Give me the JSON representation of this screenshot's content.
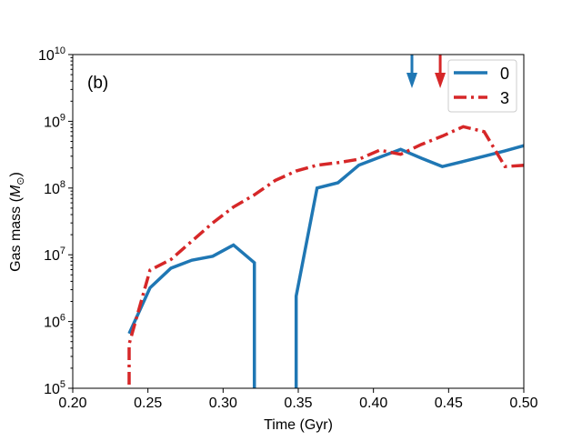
{
  "chart_data": {
    "type": "line",
    "panel_label": "(b)",
    "xlabel": "Time (Gyr)",
    "ylabel": "Gas mass (",
    "ylabel_unit": "M",
    "ylabel_sub": "⊙",
    "ylabel_close": ")",
    "xlim": [
      0.2,
      0.5
    ],
    "ylim": [
      100000.0,
      10000000000.0
    ],
    "yscale": "log",
    "grid": false,
    "legend_placement": "top-right",
    "xticks": [
      "0.20",
      "0.25",
      "0.30",
      "0.35",
      "0.40",
      "0.45",
      "0.50"
    ],
    "yticks": [
      {
        "base": "10",
        "exp": "5"
      },
      {
        "base": "10",
        "exp": "6"
      },
      {
        "base": "10",
        "exp": "7"
      },
      {
        "base": "10",
        "exp": "8"
      },
      {
        "base": "10",
        "exp": "9"
      },
      {
        "base": "10",
        "exp": "10"
      }
    ],
    "series": [
      {
        "name": "0",
        "color": "#1f77b4",
        "linestyle": "solid",
        "arrow_x": 0.4256,
        "x": [
          0.2375,
          0.2514,
          0.2653,
          0.2792,
          0.2931,
          0.3069,
          0.3208,
          0.3347,
          0.3486,
          0.3625,
          0.3764,
          0.3903,
          0.4042,
          0.4181,
          0.4319,
          0.4458,
          0.4597,
          0.4736,
          0.4875,
          0.5014
        ],
        "y": [
          660000.0,
          3200000.0,
          6300000.0,
          8300000.0,
          9500000.0,
          14000000.0,
          7600000.0,
          0,
          2400000.0,
          100000000.0,
          120000000.0,
          220000000.0,
          290000000.0,
          380000000.0,
          280000000.0,
          210000000.0,
          250000000.0,
          300000000.0,
          360000000.0,
          440000000.0
        ]
      },
      {
        "name": "3",
        "color": "#d62728",
        "linestyle": "dashdot",
        "arrow_x": 0.4444,
        "x": [
          0.2236,
          0.2375,
          0.2514,
          0.2653,
          0.2792,
          0.2931,
          0.3069,
          0.3208,
          0.3347,
          0.3486,
          0.3625,
          0.3764,
          0.3903,
          0.4042,
          0.4181,
          0.4319,
          0.4458,
          0.4597,
          0.4736,
          0.4875,
          0.5014
        ],
        "y": [
          0,
          460000.0,
          5900000.0,
          8500000.0,
          16000000.0,
          30000000.0,
          52000000.0,
          79000000.0,
          130000000.0,
          180000000.0,
          220000000.0,
          240000000.0,
          270000000.0,
          370000000.0,
          320000000.0,
          450000000.0,
          600000000.0,
          830000000.0,
          700000000.0,
          210000000.0,
          220000000.0
        ]
      }
    ]
  }
}
